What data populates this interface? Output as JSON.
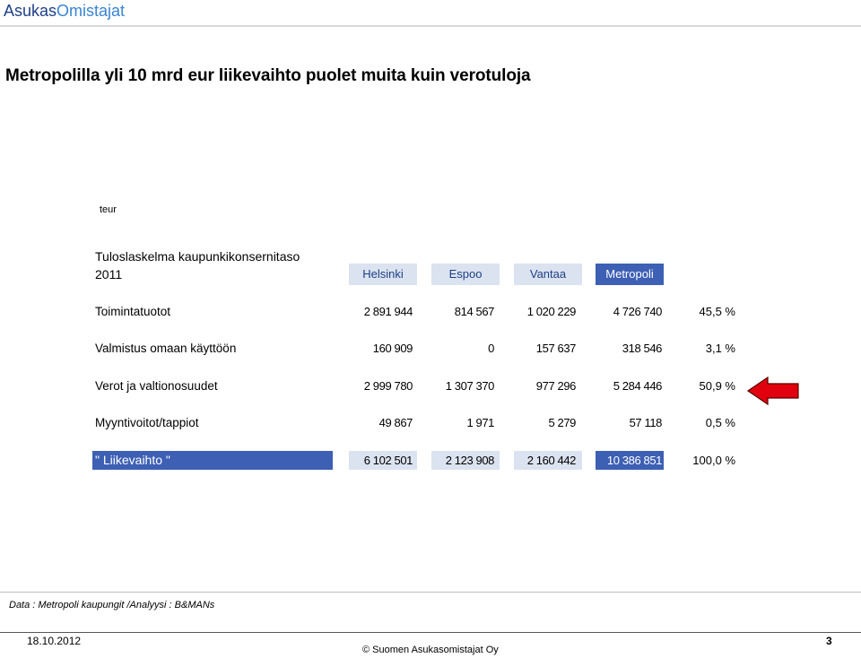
{
  "brand": {
    "part1": "Asukas",
    "part2": "Omistajat"
  },
  "title": "Metropolilla yli 10 mrd eur liikevaihto  puolet muita kuin verotuloja",
  "unit": "teur",
  "table": {
    "subtitle_line1": "Tuloslaskelma kaupunkikonsernitaso",
    "subtitle_line2": "2011",
    "columns": [
      "Helsinki",
      "Espoo",
      "Vantaa",
      "Metropoli"
    ],
    "rows": [
      {
        "label": "Toimintatuotot",
        "values": [
          "2 891 944",
          "814 567",
          "1 020 229",
          "4 726 740"
        ],
        "share": "45,5 %"
      },
      {
        "label": "Valmistus omaan käyttöön",
        "values": [
          "160 909",
          "0",
          "157 637",
          "318 546"
        ],
        "share": "3,1 %"
      },
      {
        "label": "Verot ja valtionosuudet",
        "values": [
          "2 999 780",
          "1 307 370",
          "977 296",
          "5 284 446"
        ],
        "share": "50,9 %"
      },
      {
        "label": "Myyntivoitot/tappiot",
        "values": [
          "49 867",
          "1 971",
          "5 279",
          "57 118"
        ],
        "share": "0,5 %"
      }
    ],
    "total": {
      "label": "\" Liikevaihto \"",
      "values": [
        "6 102 501",
        "2 123 908",
        "2 160 442",
        "10 386 851"
      ],
      "share": "100,0 %"
    }
  },
  "highlight_arrow": {
    "icon": "arrow-left-icon",
    "color": "#e0000e"
  },
  "colors": {
    "dark_header": "#3d5fb4",
    "light_header": "#dbe3f0",
    "brand_dark": "#1f3f86",
    "brand_light": "#3a84d1"
  },
  "source": "Data : Metropoli kaupungit /Analyysi : B&MANs",
  "footer": {
    "date": "18.10.2012",
    "copyright": "© Suomen Asukasomistajat Oy",
    "page": "3"
  }
}
